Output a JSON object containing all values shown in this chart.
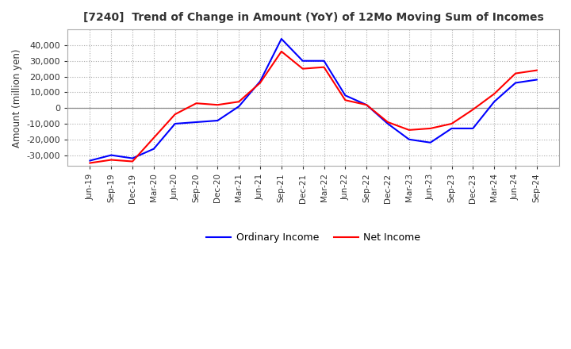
{
  "title": "[7240]  Trend of Change in Amount (YoY) of 12Mo Moving Sum of Incomes",
  "ylabel": "Amount (million yen)",
  "ylim": [
    -37000,
    50000
  ],
  "yticks": [
    -30000,
    -20000,
    -10000,
    0,
    10000,
    20000,
    30000,
    40000
  ],
  "background_color": "#ffffff",
  "grid_color": "#aaaaaa",
  "ordinary_income_color": "#0000ff",
  "net_income_color": "#ff0000",
  "dates": [
    "Jun-19",
    "Sep-19",
    "Dec-19",
    "Mar-20",
    "Jun-20",
    "Sep-20",
    "Dec-20",
    "Mar-21",
    "Jun-21",
    "Sep-21",
    "Dec-21",
    "Mar-22",
    "Jun-22",
    "Sep-22",
    "Dec-22",
    "Mar-23",
    "Jun-23",
    "Sep-23",
    "Dec-23",
    "Mar-24",
    "Jun-24",
    "Sep-24"
  ],
  "ordinary_income": [
    -33500,
    -30000,
    -32000,
    -26000,
    -10000,
    -9000,
    -8000,
    1000,
    17000,
    44000,
    30000,
    30000,
    8000,
    2000,
    -10000,
    -20000,
    -22000,
    -13000,
    -13000,
    4000,
    16000,
    18000
  ],
  "net_income": [
    -35000,
    -33000,
    -34000,
    -19000,
    -4000,
    3000,
    2000,
    4000,
    16000,
    36000,
    25000,
    26000,
    5000,
    2000,
    -9000,
    -14000,
    -13000,
    -10000,
    -1000,
    9000,
    22000,
    24000
  ]
}
